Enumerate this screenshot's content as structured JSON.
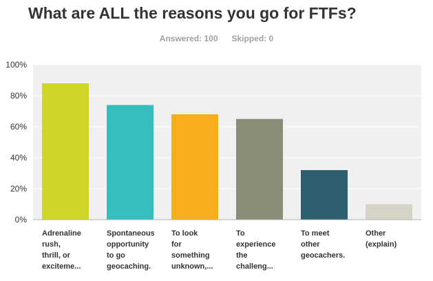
{
  "title": "What are ALL the reasons you go for FTFs?",
  "answered_label": "Answered: 100",
  "skipped_label": "Skipped: 0",
  "colors": {
    "plot_background": "#f0f0f0",
    "gridline": "#ffffff",
    "axis_line": "#b0b0b0",
    "bars": [
      "#cdd629",
      "#34bfbe",
      "#f6ae1e",
      "#8a8c77",
      "#2d5f6e",
      "#d6d4c6"
    ]
  },
  "chart_data": {
    "type": "bar",
    "title": "What are ALL the reasons you go for FTFs?",
    "categories": [
      [
        "Adrenaline",
        "rush,",
        "thrill, or",
        "exciteme..."
      ],
      [
        "Spontaneous",
        "opportunity",
        "to go",
        "geocaching."
      ],
      [
        "To look",
        "for",
        "something",
        "unknown,..."
      ],
      [
        "To",
        "experience",
        "the",
        "challeng..."
      ],
      [
        "To meet",
        "other",
        "geocachers."
      ],
      [
        "Other",
        "(explain)"
      ]
    ],
    "values": [
      88,
      74,
      68,
      65,
      32,
      10
    ],
    "y_ticks": [
      "0%",
      "20%",
      "40%",
      "60%",
      "80%",
      "100%"
    ],
    "ylim": [
      0,
      100
    ],
    "grid": true,
    "xlabel": "",
    "ylabel": ""
  }
}
